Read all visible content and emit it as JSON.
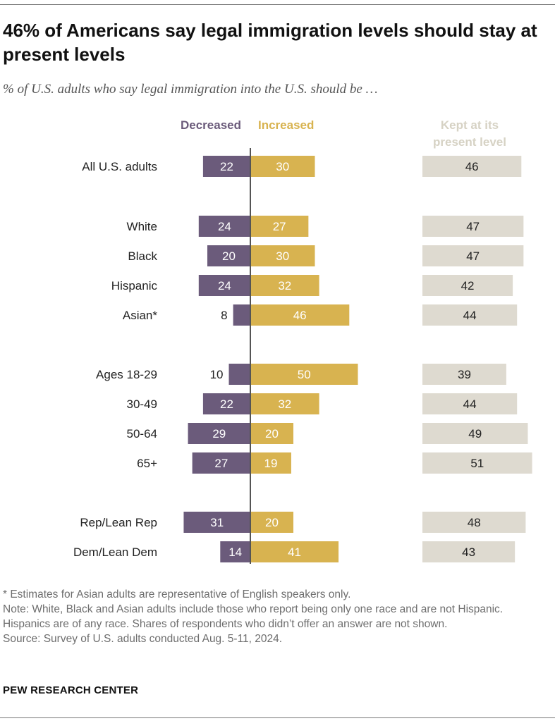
{
  "title": "46% of Americans say legal immigration levels should stay at present levels",
  "subtitle": "% of U.S. adults who say legal immigration into the U.S. should be …",
  "colors": {
    "decreased": "#6b5b7b",
    "increased": "#d8b350",
    "kept": "#dedad0",
    "kept_label": "#d6d2c4",
    "axis": "#555555"
  },
  "chart_data": {
    "type": "bar",
    "series": [
      {
        "name": "Decreased",
        "values": [
          22,
          24,
          20,
          24,
          8,
          10,
          22,
          29,
          27,
          31,
          14
        ]
      },
      {
        "name": "Increased",
        "values": [
          30,
          27,
          30,
          32,
          46,
          50,
          32,
          20,
          19,
          20,
          41
        ]
      },
      {
        "name": "Kept at its present level",
        "values": [
          46,
          47,
          47,
          42,
          44,
          39,
          44,
          49,
          51,
          48,
          43
        ]
      }
    ],
    "categories": [
      "All U.S. adults",
      "White",
      "Black",
      "Hispanic",
      "Asian*",
      "Ages 18-29",
      "30-49",
      "50-64",
      "65+",
      "Rep/Lean Rep",
      "Dem/Lean Dem"
    ],
    "groups": [
      [
        0
      ],
      [
        1,
        2,
        3,
        4
      ],
      [
        5,
        6,
        7,
        8
      ],
      [
        9,
        10
      ]
    ],
    "legend": {
      "decreased": "Decreased",
      "increased": "Increased",
      "kept_line1": "Kept at its",
      "kept_line2": "present level"
    },
    "units": "%"
  },
  "notes": {
    "asterisk": "* Estimates for Asian adults are representative of English speakers only.",
    "note": "Note: White, Black and Asian adults include those who report being only one race and are not Hispanic. Hispanics are of any race. Shares of respondents who didn’t offer an answer are not shown.",
    "source": "Source: Survey of U.S. adults conducted Aug. 5-11, 2024."
  },
  "brand": "PEW RESEARCH CENTER"
}
